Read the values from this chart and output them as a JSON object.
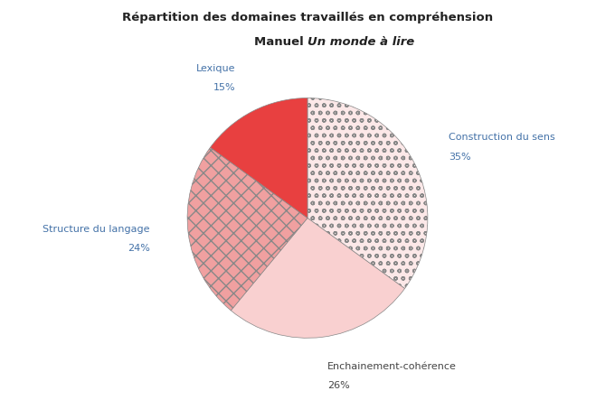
{
  "title_line1": "Répartition des domaines travaillés en compréhension",
  "title_line2_normal": "Manuel ",
  "title_line2_italic": "Un monde à lire",
  "slices": [
    {
      "label": "Construction du sens",
      "pct": 35,
      "color": "#fce8e8",
      "hatch": "oo"
    },
    {
      "label": "Enchainement-cohérence",
      "pct": 26,
      "color": "#f9d0d0",
      "hatch": ""
    },
    {
      "label": "Structure du langage",
      "pct": 24,
      "color": "#f0a0a0",
      "hatch": "//\\\\"
    },
    {
      "label": "Lexique",
      "pct": 15,
      "color": "#e84040",
      "hatch": "==="
    }
  ],
  "label_colors": {
    "Construction du sens": "#4472a8",
    "Enchainement-cohérence": "#444444",
    "Structure du langage": "#4472a8",
    "Lexique": "#4472a8"
  },
  "label_fontsize": 8,
  "bg_color": "#ffffff",
  "start_angle": 90,
  "legend_fontsize": 7.5
}
